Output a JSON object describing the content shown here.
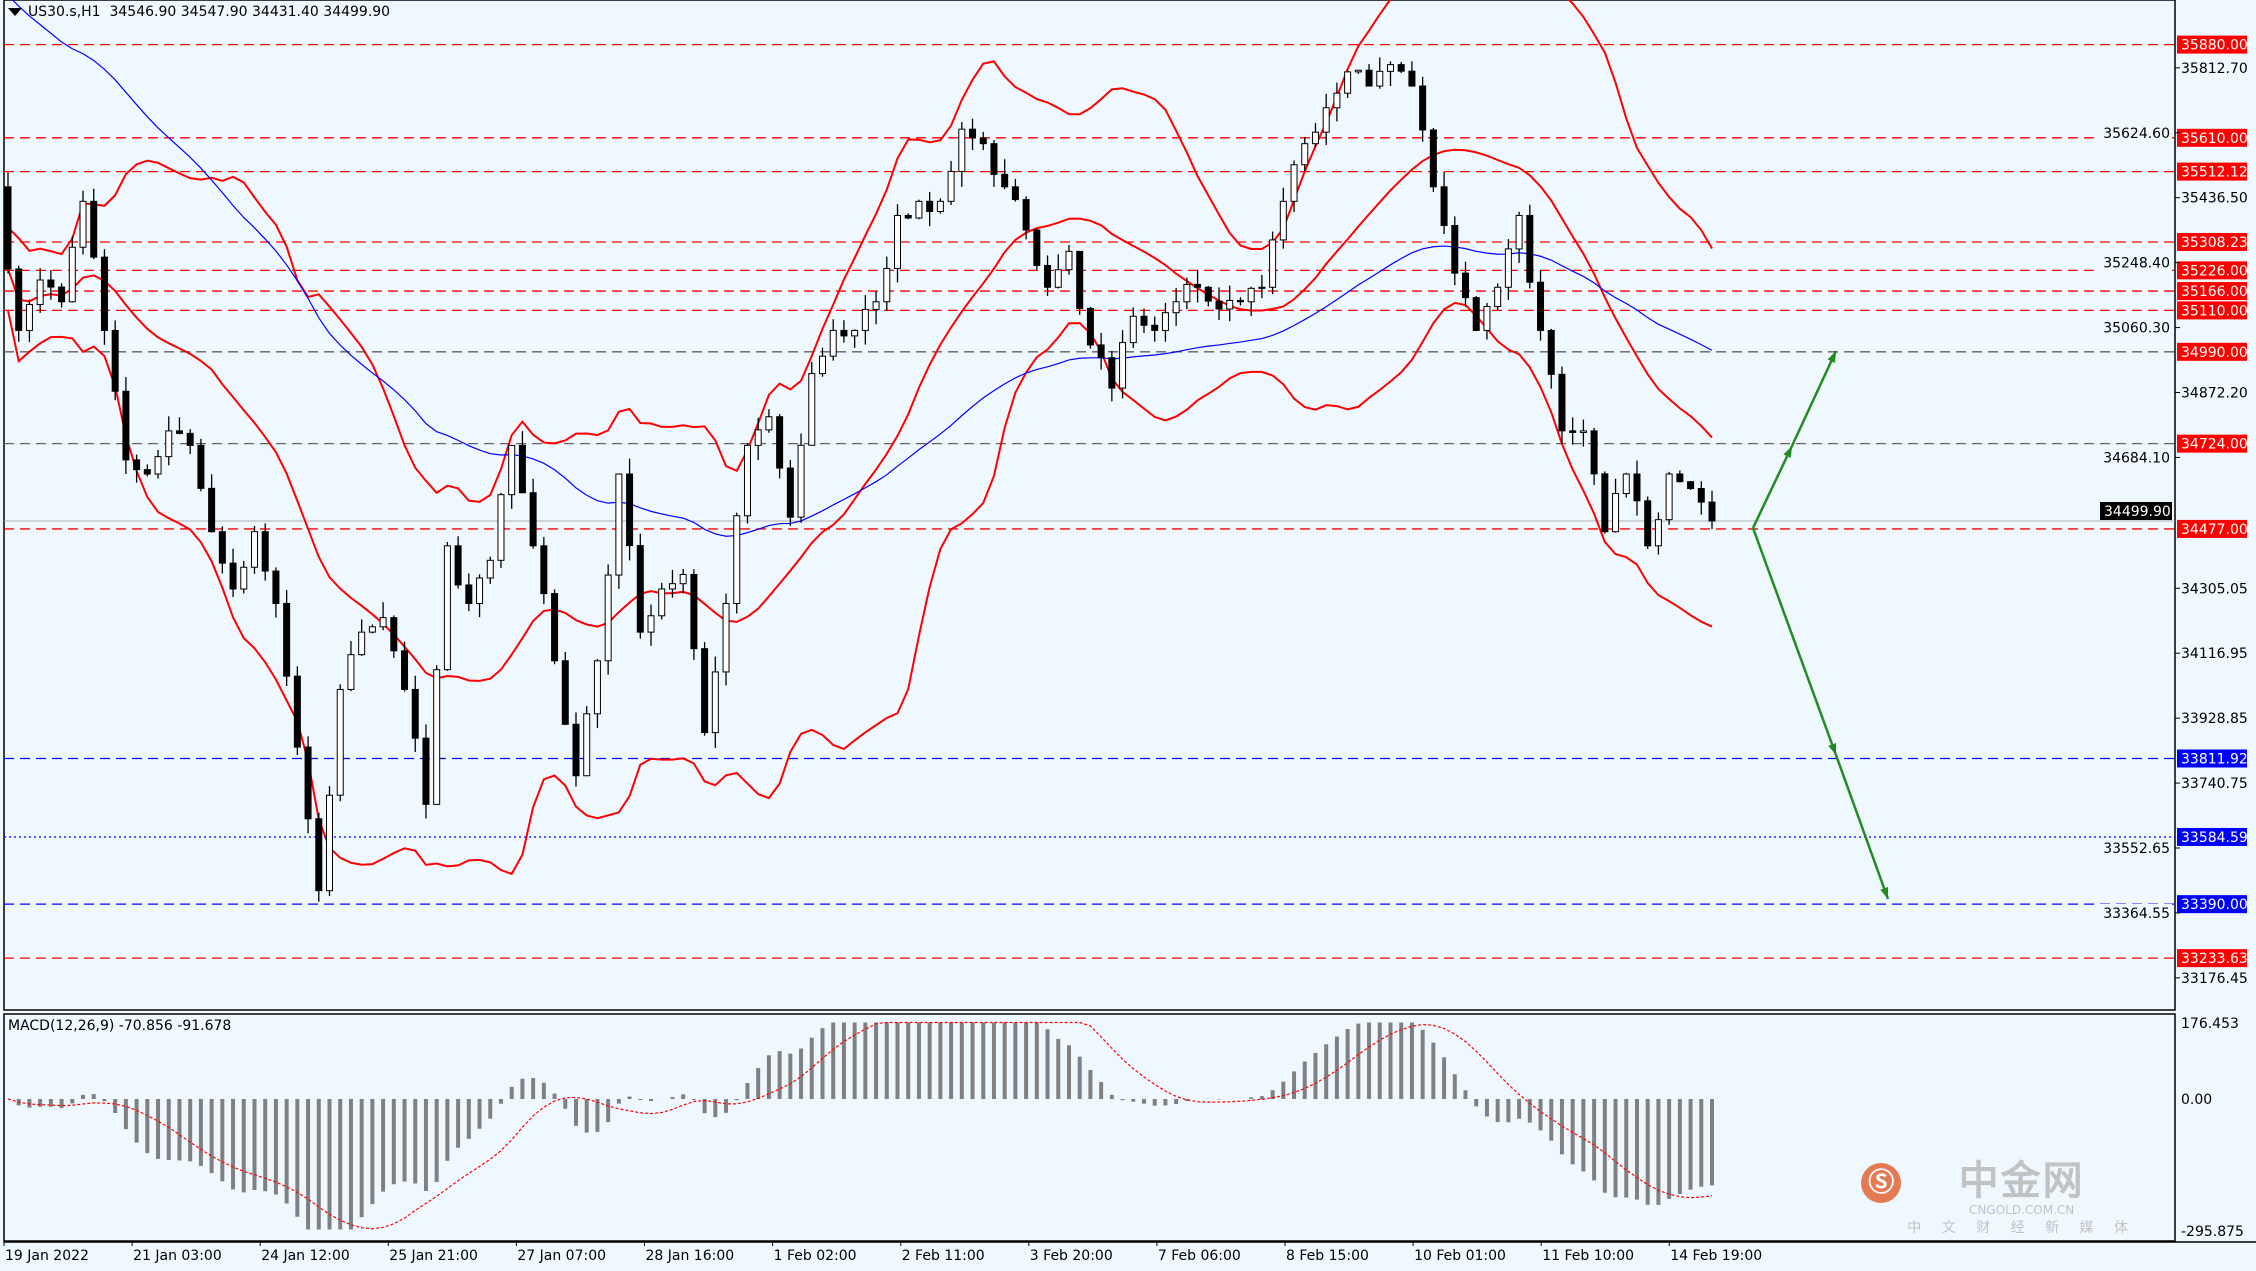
{
  "header": {
    "symbol": "US30.s,H1",
    "open": "34546.90",
    "high": "34547.90",
    "low": "34431.40",
    "close": "34499.90"
  },
  "macd_header": "MACD(12,26,9) -70.856 -91.678",
  "colors": {
    "background": "#f0f8ff",
    "bull_bear_candle": "#000000",
    "bollinger": "#ff0000",
    "moving_average": "#0000ff",
    "resistance_label": "#ff0000",
    "support_label": "#0000ff",
    "arrow": "#228b22",
    "macd_hist": "#808080",
    "macd_signal": "#ff0000"
  },
  "logo": {
    "text": "中金网",
    "url_text": "CNGOLD.COM.CN",
    "slogan": "中 文 财 经 新 媒 体"
  },
  "chart_data": {
    "type": "candlestick",
    "title": "US30.s,H1",
    "timeframe": "H1",
    "price_path_closes": [
      35468,
      35052,
      35198,
      35135,
      35426,
      35052,
      34677,
      34636,
      34761,
      34719,
      34469,
      34303,
      34469,
      34261,
      33845,
      33429,
      34012,
      34178,
      34220,
      34012,
      33679,
      34428,
      34261,
      34386,
      34719,
      34428,
      34095,
      33762,
      34095,
      34636,
      34178,
      34303,
      34345,
      33887,
      34261,
      34719,
      34802,
      34511,
      34927,
      35052,
      35052,
      35135,
      35385,
      35426,
      35426,
      35635,
      35593,
      35468,
      35343,
      35177,
      35281,
      35010,
      34885,
      35093,
      35052,
      35135,
      35177,
      35114,
      35135,
      35177,
      35426,
      35593,
      35697,
      35801,
      35760,
      35822,
      35760,
      35468,
      35218,
      35052,
      35177,
      35385,
      35052,
      34761,
      34761,
      34469,
      34636,
      34428,
      34636,
      34594,
      34500
    ],
    "x_tick_labels": [
      "19 Jan 2022",
      "21 Jan 03:00",
      "24 Jan 12:00",
      "25 Jan 21:00",
      "27 Jan 07:00",
      "28 Jan 16:00",
      "1 Feb 02:00",
      "2 Feb 11:00",
      "3 Feb 20:00",
      "7 Feb 06:00",
      "8 Feb 15:00",
      "10 Feb 01:00",
      "11 Feb 10:00",
      "14 Feb 19:00"
    ],
    "y_tick_labels": [
      "35812.70",
      "35624.60",
      "35436.50",
      "35248.40",
      "35060.30",
      "34872.20",
      "34684.10",
      "34305.05",
      "34116.95",
      "33928.85",
      "33740.75",
      "33552.65",
      "33364.55",
      "33176.45"
    ],
    "ylim": [
      33100,
      35980
    ],
    "current_price": "34499.90",
    "levels": [
      {
        "value": "35880.00",
        "kind": "resistance",
        "style": "dashed"
      },
      {
        "value": "35610.00",
        "kind": "resistance",
        "style": "dashed"
      },
      {
        "value": "35512.12",
        "kind": "resistance",
        "style": "dashed"
      },
      {
        "value": "35308.23",
        "kind": "resistance",
        "style": "dashed"
      },
      {
        "value": "35226.00",
        "kind": "resistance",
        "style": "dashed"
      },
      {
        "value": "35166.00",
        "kind": "resistance",
        "style": "dashed"
      },
      {
        "value": "35110.00",
        "kind": "resistance",
        "style": "dashed"
      },
      {
        "value": "34990.00",
        "kind": "pivot",
        "style": "dashed-gray"
      },
      {
        "value": "34724.00",
        "kind": "pivot",
        "style": "dashed-gray"
      },
      {
        "value": "34477.00",
        "kind": "resistance",
        "style": "dashed"
      },
      {
        "value": "33811.92",
        "kind": "support",
        "style": "dashed"
      },
      {
        "value": "33584.59",
        "kind": "support",
        "style": "dotted"
      },
      {
        "value": "33390.00",
        "kind": "support",
        "style": "dashed"
      },
      {
        "value": "33233.63",
        "kind": "resistance",
        "style": "dashed"
      }
    ],
    "indicators": [
      "Bollinger Bands (20,2)",
      "Moving Average",
      "MACD(12,26,9)"
    ],
    "forecast_arrows": [
      {
        "direction": "up",
        "from": 34477,
        "to": 34990
      },
      {
        "direction": "down",
        "from": 34477,
        "to": 33390
      }
    ],
    "macd": {
      "label": "MACD(12,26,9)",
      "main": -70.856,
      "signal": -91.678,
      "y_tick_labels": [
        "176.453",
        "0.00",
        "-295.875"
      ],
      "ylim": [
        -295.875,
        176.453
      ]
    }
  }
}
